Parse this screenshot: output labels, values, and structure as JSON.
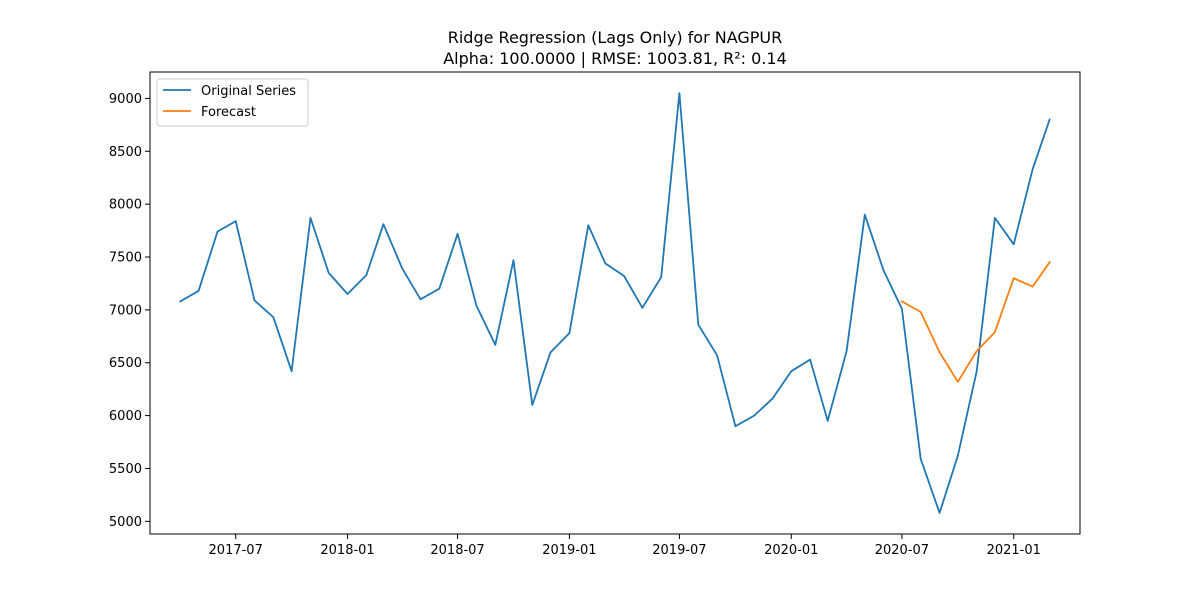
{
  "chart_data": {
    "type": "line",
    "title": "Ridge Regression (Lags Only) for NAGPUR",
    "subtitle": "Alpha: 100.0000 | RMSE: 1003.81, R²: 0.14",
    "xlabel": "",
    "ylabel": "",
    "ylim": [
      4880,
      9250
    ],
    "xlim": [
      "2017-02-10",
      "2021-04-20"
    ],
    "x_ticks": [
      "2017-07",
      "2018-01",
      "2018-07",
      "2019-01",
      "2019-07",
      "2020-01",
      "2020-07",
      "2021-01"
    ],
    "y_ticks": [
      5000,
      5500,
      6000,
      6500,
      7000,
      7500,
      8000,
      8500,
      9000
    ],
    "grid": false,
    "legend_position": "top-left",
    "series": [
      {
        "name": "Original Series",
        "color": "#1f77b4",
        "x": [
          "2017-04",
          "2017-05",
          "2017-06",
          "2017-07",
          "2017-08",
          "2017-09",
          "2017-10",
          "2017-11",
          "2017-12",
          "2018-01",
          "2018-02",
          "2018-03",
          "2018-04",
          "2018-05",
          "2018-06",
          "2018-07",
          "2018-08",
          "2018-09",
          "2018-10",
          "2018-11",
          "2018-12",
          "2019-01",
          "2019-02",
          "2019-03",
          "2019-04",
          "2019-05",
          "2019-06",
          "2019-07",
          "2019-08",
          "2019-09",
          "2019-10",
          "2019-11",
          "2019-12",
          "2020-01",
          "2020-02",
          "2020-03",
          "2020-04",
          "2020-05",
          "2020-06",
          "2020-07",
          "2020-08",
          "2020-09",
          "2020-10",
          "2020-11",
          "2020-12",
          "2021-01",
          "2021-02",
          "2021-03"
        ],
        "values": [
          7080,
          7180,
          7740,
          7840,
          7090,
          6930,
          6420,
          7870,
          7350,
          7150,
          7330,
          7810,
          7390,
          7100,
          7200,
          7720,
          7040,
          6670,
          7470,
          6100,
          6600,
          6780,
          7800,
          7440,
          7320,
          7020,
          7310,
          9050,
          6860,
          6570,
          5900,
          6000,
          6160,
          6420,
          6530,
          5950,
          6610,
          7900,
          7370,
          7010,
          5590,
          5080,
          5620,
          6420,
          7870,
          7620,
          8330,
          8800
        ]
      },
      {
        "name": "Forecast",
        "color": "#ff7f0e",
        "x": [
          "2020-07",
          "2020-08",
          "2020-09",
          "2020-10",
          "2020-11",
          "2020-12",
          "2021-01",
          "2021-02",
          "2021-03"
        ],
        "values": [
          7080,
          6980,
          6600,
          6320,
          6610,
          6790,
          7300,
          7220,
          7450
        ]
      }
    ]
  }
}
